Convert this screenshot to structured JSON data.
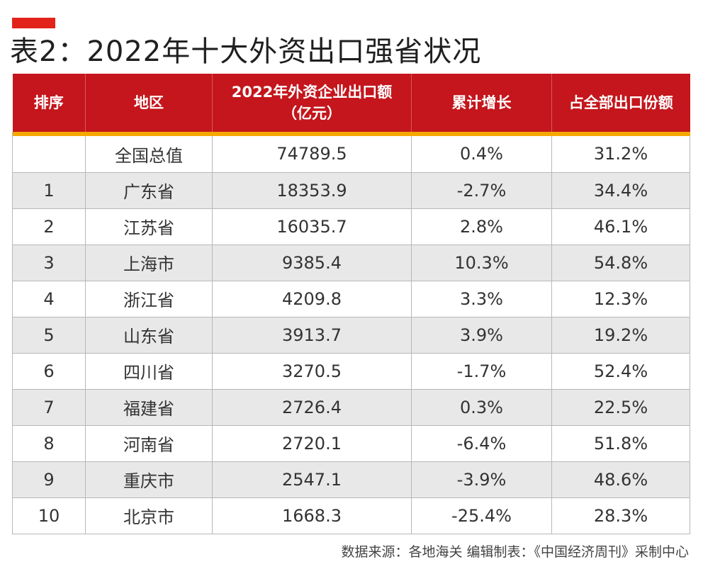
{
  "title": "表2：2022年十大外资出口强省状况",
  "table": {
    "headers": [
      "排序",
      "地区",
      "2022年外资企业出口额\n（亿元）",
      "累计增长",
      "占全部出口份额"
    ],
    "rows": [
      {
        "rank": "",
        "region": "全国总值",
        "amount": "74789.5",
        "growth": "0.4%",
        "share": "31.2%"
      },
      {
        "rank": "1",
        "region": "广东省",
        "amount": "18353.9",
        "growth": "-2.7%",
        "share": "34.4%"
      },
      {
        "rank": "2",
        "region": "江苏省",
        "amount": "16035.7",
        "growth": "2.8%",
        "share": "46.1%"
      },
      {
        "rank": "3",
        "region": "上海市",
        "amount": "9385.4",
        "growth": "10.3%",
        "share": "54.8%"
      },
      {
        "rank": "4",
        "region": "浙江省",
        "amount": "4209.8",
        "growth": "3.3%",
        "share": "12.3%"
      },
      {
        "rank": "5",
        "region": "山东省",
        "amount": "3913.7",
        "growth": "3.9%",
        "share": "19.2%"
      },
      {
        "rank": "6",
        "region": "四川省",
        "amount": "3270.5",
        "growth": "-1.7%",
        "share": "52.4%"
      },
      {
        "rank": "7",
        "region": "福建省",
        "amount": "2726.4",
        "growth": "0.3%",
        "share": "22.5%"
      },
      {
        "rank": "8",
        "region": "河南省",
        "amount": "2720.1",
        "growth": "-6.4%",
        "share": "51.8%"
      },
      {
        "rank": "9",
        "region": "重庆市",
        "amount": "2547.1",
        "growth": "-3.9%",
        "share": "48.6%"
      },
      {
        "rank": "10",
        "region": "北京市",
        "amount": "1668.3",
        "growth": "-25.4%",
        "share": "28.3%"
      }
    ]
  },
  "footer": "数据来源：各地海关   编辑制表：《中国经济周刊》采制中心",
  "colors": {
    "accent": "#e2231a",
    "header_bg": "#c4161c",
    "header_rule": "#f5a800",
    "stripe": "#e8e8e8"
  }
}
